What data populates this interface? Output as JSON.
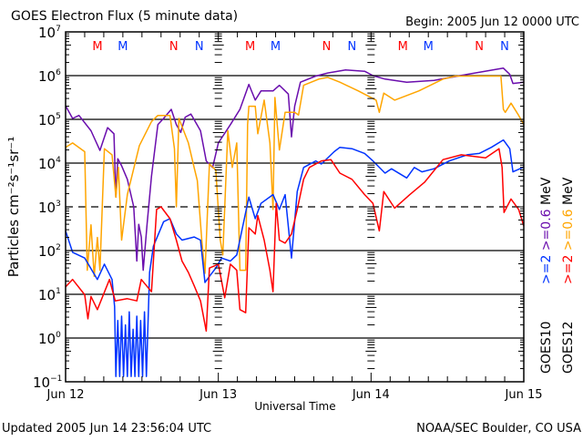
{
  "chart_data": {
    "type": "line",
    "title": "GOES Electron Flux (5 minute data)",
    "begin_label": "Begin: 2005 Jun 12 0000 UTC",
    "xlabel": "Universal Time",
    "ylabel": "Particles cm⁻²s⁻¹sr⁻¹",
    "x_unit": "hours since 2005 Jun 12 0000 UTC",
    "xlim": [
      0,
      72
    ],
    "ylim_log10": [
      -1,
      7
    ],
    "y_scale": "log",
    "x_ticks": [
      {
        "hour": 0,
        "label": "Jun 12"
      },
      {
        "hour": 24,
        "label": "Jun 13"
      },
      {
        "hour": 48,
        "label": "Jun 14"
      },
      {
        "hour": 72,
        "label": "Jun 15"
      }
    ],
    "y_ticks": [
      {
        "exp": 7,
        "base": "10",
        "sup": "7"
      },
      {
        "exp": 6,
        "base": "10",
        "sup": "6"
      },
      {
        "exp": 5,
        "base": "10",
        "sup": "5"
      },
      {
        "exp": 4,
        "base": "10",
        "sup": "4"
      },
      {
        "exp": 3,
        "base": "10",
        "sup": "3"
      },
      {
        "exp": 2,
        "base": "10",
        "sup": "2"
      },
      {
        "exp": 1,
        "base": "10",
        "sup": "1"
      },
      {
        "exp": 0,
        "base": "10",
        "sup": "0"
      },
      {
        "exp": -1,
        "base": "10",
        "sup": "−1"
      }
    ],
    "grid_solid_exps": [
      6,
      5,
      4,
      2,
      1,
      0
    ],
    "grid_dashed_exps": [
      3
    ],
    "markers": [
      {
        "label": "M",
        "hour": 5,
        "color": "#ff0000"
      },
      {
        "label": "M",
        "hour": 9,
        "color": "#0033ff"
      },
      {
        "label": "N",
        "hour": 17,
        "color": "#ff0000"
      },
      {
        "label": "N",
        "hour": 21,
        "color": "#0033ff"
      },
      {
        "label": "M",
        "hour": 29,
        "color": "#ff0000"
      },
      {
        "label": "M",
        "hour": 33,
        "color": "#0033ff"
      },
      {
        "label": "N",
        "hour": 41,
        "color": "#ff0000"
      },
      {
        "label": "N",
        "hour": 45,
        "color": "#0033ff"
      },
      {
        "label": "M",
        "hour": 53,
        "color": "#ff0000"
      },
      {
        "label": "M",
        "hour": 57,
        "color": "#0033ff"
      },
      {
        "label": "N",
        "hour": 65,
        "color": "#ff0000"
      },
      {
        "label": "N",
        "hour": 69,
        "color": "#0033ff"
      }
    ],
    "legend": {
      "placement": "right",
      "columns": [
        {
          "satellite": "GOES10",
          "items": [
            {
              "text": ">=2",
              "color": "#0033ff"
            },
            {
              "text": ">=0.6",
              "color": "#6a0dad"
            },
            {
              "text": "MeV",
              "color": "#000000"
            }
          ]
        },
        {
          "satellite": "GOES12",
          "items": [
            {
              "text": ">=2",
              "color": "#ff0000"
            },
            {
              "text": ">=0.6",
              "color": "#ffa500"
            },
            {
              "text": "MeV",
              "color": "#000000"
            }
          ]
        }
      ]
    },
    "series": [
      {
        "name": "GOES10 >=0.6 MeV",
        "color": "#6a0dad",
        "points_hour_log10flux": [
          [
            0,
            5.31
          ],
          [
            1.1,
            5.02
          ],
          [
            2.1,
            5.09
          ],
          [
            4,
            4.74
          ],
          [
            5.4,
            4.29
          ],
          [
            6.6,
            4.81
          ],
          [
            7.6,
            4.67
          ],
          [
            7.9,
            3.22
          ],
          [
            8.2,
            4.1
          ],
          [
            8.8,
            3.94
          ],
          [
            9.7,
            3.63
          ],
          [
            10.7,
            3.0
          ],
          [
            11.2,
            1.76
          ],
          [
            11.5,
            2.6
          ],
          [
            11.9,
            2.31
          ],
          [
            12.2,
            1.55
          ],
          [
            12.8,
            2.59
          ],
          [
            13.5,
            3.7
          ],
          [
            14.5,
            4.88
          ],
          [
            15.4,
            5.02
          ],
          [
            16.6,
            5.23
          ],
          [
            17.4,
            4.88
          ],
          [
            18.1,
            4.7
          ],
          [
            18.8,
            5.05
          ],
          [
            19.7,
            5.12
          ],
          [
            21.2,
            4.74
          ],
          [
            22.1,
            4.05
          ],
          [
            23.1,
            3.9
          ],
          [
            24,
            4.46
          ],
          [
            25.9,
            4.88
          ],
          [
            27.4,
            5.23
          ],
          [
            28.8,
            5.8
          ],
          [
            29.8,
            5.44
          ],
          [
            30.7,
            5.65
          ],
          [
            32.6,
            5.65
          ],
          [
            33.6,
            5.78
          ],
          [
            35,
            5.58
          ],
          [
            35.5,
            4.6
          ],
          [
            36,
            5.3
          ],
          [
            36.9,
            5.85
          ],
          [
            39.3,
            5.99
          ],
          [
            41.2,
            6.06
          ],
          [
            44,
            6.13
          ],
          [
            47,
            6.1
          ],
          [
            48.3,
            6.0
          ],
          [
            50.2,
            5.92
          ],
          [
            53.6,
            5.85
          ],
          [
            57.9,
            5.89
          ],
          [
            63.1,
            6.03
          ],
          [
            68.8,
            6.17
          ],
          [
            69.8,
            6.03
          ],
          [
            70.3,
            5.82
          ],
          [
            72,
            5.85
          ]
        ]
      },
      {
        "name": "GOES12 >=0.6 MeV",
        "color": "#ffa500",
        "points_hour_log10flux": [
          [
            0,
            4.36
          ],
          [
            1.1,
            4.46
          ],
          [
            3.0,
            4.26
          ],
          [
            3.4,
            1.55
          ],
          [
            4,
            2.59
          ],
          [
            4.5,
            1.41
          ],
          [
            5,
            2.3
          ],
          [
            5.4,
            1.55
          ],
          [
            6.1,
            4.33
          ],
          [
            7.3,
            4.19
          ],
          [
            7.9,
            3.22
          ],
          [
            8.3,
            3.9
          ],
          [
            8.8,
            2.24
          ],
          [
            9.7,
            3.28
          ],
          [
            11.6,
            4.4
          ],
          [
            13.5,
            4.95
          ],
          [
            14.5,
            5.09
          ],
          [
            16.4,
            5.09
          ],
          [
            17.1,
            4.33
          ],
          [
            17.4,
            3.0
          ],
          [
            17.8,
            5.02
          ],
          [
            19.3,
            4.46
          ],
          [
            20.2,
            3.9
          ],
          [
            20.7,
            3.6
          ],
          [
            21.4,
            2.24
          ],
          [
            21.9,
            1.48
          ],
          [
            22.6,
            3.98
          ],
          [
            23.6,
            3.84
          ],
          [
            24.3,
            2.24
          ],
          [
            24.7,
            1.9
          ],
          [
            25.5,
            4.74
          ],
          [
            26.2,
            3.9
          ],
          [
            26.9,
            4.46
          ],
          [
            27.4,
            1.55
          ],
          [
            28.3,
            1.55
          ],
          [
            28.6,
            4.88
          ],
          [
            28.8,
            5.3
          ],
          [
            29.8,
            5.3
          ],
          [
            30.2,
            4.67
          ],
          [
            31.2,
            5.44
          ],
          [
            32.1,
            4.46
          ],
          [
            32.6,
            2.94
          ],
          [
            32.9,
            5.5
          ],
          [
            33.6,
            4.3
          ],
          [
            34.5,
            5.16
          ],
          [
            36,
            5.16
          ],
          [
            36.6,
            5.1
          ],
          [
            37.4,
            5.78
          ],
          [
            39.8,
            5.92
          ],
          [
            41.2,
            5.96
          ],
          [
            43.1,
            5.85
          ],
          [
            46,
            5.65
          ],
          [
            48.8,
            5.44
          ],
          [
            49.3,
            5.16
          ],
          [
            50,
            5.6
          ],
          [
            51.7,
            5.44
          ],
          [
            55.5,
            5.65
          ],
          [
            59.3,
            5.92
          ],
          [
            61.2,
            5.99
          ],
          [
            68.4,
            5.99
          ],
          [
            68.8,
            5.23
          ],
          [
            69.1,
            5.16
          ],
          [
            70,
            5.37
          ],
          [
            71.2,
            5.09
          ],
          [
            72,
            4.88
          ]
        ]
      },
      {
        "name": "GOES10 >=2 MeV",
        "color": "#0033ff",
        "points_hour_log10flux": [
          [
            0,
            2.45
          ],
          [
            1.1,
            1.96
          ],
          [
            3.0,
            1.83
          ],
          [
            5,
            1.34
          ],
          [
            6.1,
            1.69
          ],
          [
            7.3,
            1.34
          ],
          [
            7.7,
            0.72
          ],
          [
            7.9,
            -0.88
          ],
          [
            8.2,
            0.4
          ],
          [
            8.5,
            -0.88
          ],
          [
            8.8,
            0.5
          ],
          [
            9.1,
            -0.88
          ],
          [
            9.4,
            0.3
          ],
          [
            9.7,
            -0.88
          ],
          [
            10,
            0.6
          ],
          [
            10.3,
            -0.88
          ],
          [
            10.6,
            0.2
          ],
          [
            10.9,
            -0.88
          ],
          [
            11.2,
            0.5
          ],
          [
            11.5,
            -0.88
          ],
          [
            11.8,
            0.4
          ],
          [
            12.1,
            -0.88
          ],
          [
            12.4,
            0.6
          ],
          [
            12.7,
            -0.88
          ],
          [
            13.2,
            1.5
          ],
          [
            13.8,
            2.1
          ],
          [
            15.4,
            2.66
          ],
          [
            16.4,
            2.73
          ],
          [
            17.4,
            2.38
          ],
          [
            18.3,
            2.24
          ],
          [
            20.2,
            2.31
          ],
          [
            21.2,
            2.24
          ],
          [
            21.9,
            1.27
          ],
          [
            22.6,
            1.41
          ],
          [
            23.6,
            1.6
          ],
          [
            24.5,
            1.83
          ],
          [
            25.9,
            1.76
          ],
          [
            26.9,
            1.9
          ],
          [
            28.8,
            3.22
          ],
          [
            29.8,
            2.73
          ],
          [
            30.7,
            3.08
          ],
          [
            32.6,
            3.28
          ],
          [
            33.6,
            2.94
          ],
          [
            34.5,
            3.28
          ],
          [
            35.5,
            1.83
          ],
          [
            36.4,
            3.35
          ],
          [
            37.4,
            3.9
          ],
          [
            39.3,
            4.05
          ],
          [
            40.2,
            3.98
          ],
          [
            42.2,
            4.26
          ],
          [
            43.1,
            4.36
          ],
          [
            45,
            4.33
          ],
          [
            47,
            4.22
          ],
          [
            48.3,
            4.05
          ],
          [
            50.2,
            3.77
          ],
          [
            51.2,
            3.87
          ],
          [
            53.6,
            3.66
          ],
          [
            54.8,
            3.9
          ],
          [
            56,
            3.8
          ],
          [
            57.9,
            3.87
          ],
          [
            60.3,
            4.05
          ],
          [
            63.1,
            4.19
          ],
          [
            65,
            4.22
          ],
          [
            66.9,
            4.36
          ],
          [
            68.8,
            4.53
          ],
          [
            69.8,
            4.33
          ],
          [
            70.3,
            3.8
          ],
          [
            72,
            3.91
          ]
        ]
      },
      {
        "name": "GOES12 >=2 MeV",
        "color": "#ff0000",
        "points_hour_log10flux": [
          [
            0,
            1.17
          ],
          [
            1.1,
            1.34
          ],
          [
            3.0,
            0.99
          ],
          [
            3.5,
            0.44
          ],
          [
            4,
            0.95
          ],
          [
            5,
            0.65
          ],
          [
            6.9,
            1.34
          ],
          [
            7.8,
            0.85
          ],
          [
            9.7,
            0.9
          ],
          [
            11.2,
            0.85
          ],
          [
            11.9,
            1.34
          ],
          [
            13.5,
            1.06
          ],
          [
            14.3,
            2.94
          ],
          [
            15,
            3.0
          ],
          [
            16.4,
            2.73
          ],
          [
            17.4,
            2.24
          ],
          [
            18.3,
            1.76
          ],
          [
            19.3,
            1.5
          ],
          [
            20.2,
            1.2
          ],
          [
            21.2,
            0.85
          ],
          [
            22.1,
            0.16
          ],
          [
            22.6,
            1.6
          ],
          [
            24,
            1.69
          ],
          [
            25,
            0.92
          ],
          [
            25.9,
            1.69
          ],
          [
            26.9,
            1.55
          ],
          [
            27.4,
            0.65
          ],
          [
            28.3,
            0.58
          ],
          [
            28.8,
            2.52
          ],
          [
            29.8,
            2.38
          ],
          [
            30.2,
            2.8
          ],
          [
            31.2,
            2.24
          ],
          [
            32.1,
            1.55
          ],
          [
            32.6,
            1.06
          ],
          [
            33.1,
            3.08
          ],
          [
            33.6,
            2.24
          ],
          [
            34.5,
            2.17
          ],
          [
            35.5,
            2.38
          ],
          [
            36.4,
            2.94
          ],
          [
            37.4,
            3.63
          ],
          [
            38.3,
            3.9
          ],
          [
            39.3,
            3.98
          ],
          [
            40.2,
            4.05
          ],
          [
            41.7,
            4.08
          ],
          [
            43.1,
            3.77
          ],
          [
            45,
            3.63
          ],
          [
            47,
            3.28
          ],
          [
            48.3,
            3.08
          ],
          [
            49.3,
            2.45
          ],
          [
            50,
            3.35
          ],
          [
            51.7,
            2.97
          ],
          [
            54.1,
            3.28
          ],
          [
            56.4,
            3.56
          ],
          [
            59.3,
            4.08
          ],
          [
            62.2,
            4.19
          ],
          [
            66,
            4.12
          ],
          [
            68.1,
            4.33
          ],
          [
            68.6,
            3.9
          ],
          [
            68.9,
            2.87
          ],
          [
            70,
            3.18
          ],
          [
            71.2,
            2.94
          ],
          [
            72,
            2.56
          ]
        ]
      }
    ]
  },
  "footer": {
    "updated": "Updated 2005 Jun 14 23:56:04 UTC",
    "source": "NOAA/SEC Boulder, CO USA"
  }
}
